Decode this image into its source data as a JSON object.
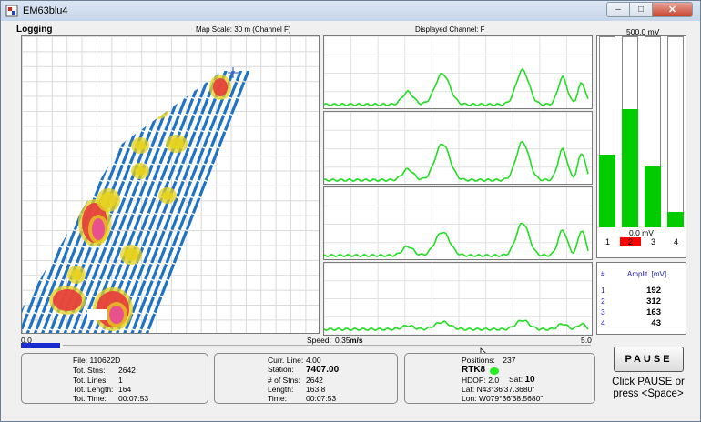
{
  "window": {
    "title": "EM63blu4",
    "min_glyph": "–",
    "max_glyph": "□",
    "close_glyph": "✕"
  },
  "header": {
    "section_title": "Logging",
    "map_scale": "Map Scale:   30 m (Channel F)",
    "displayed_channel": "Displayed Channel: F"
  },
  "bars": {
    "top_label": "500.0 mV",
    "bottom_label": "0.0 mV",
    "levels": [
      0.38,
      0.62,
      0.32,
      0.08
    ],
    "channels": [
      "1",
      "2",
      "3",
      "4"
    ],
    "active_channel_index": 1,
    "bar_color": "#00cc00",
    "active_color": "#ff0000"
  },
  "amplitude_table": {
    "col_num": "#",
    "col_amp": "Amplit. [mV]",
    "rows": [
      {
        "ch": "1",
        "value": "192"
      },
      {
        "ch": "2",
        "value": "312"
      },
      {
        "ch": "3",
        "value": "163"
      },
      {
        "ch": "4",
        "value": "43"
      }
    ]
  },
  "speed": {
    "min": "0.0",
    "label": "Speed:",
    "value": "0.35",
    "unit": "m/s",
    "max": "5.0",
    "fraction": 0.07
  },
  "file_group": {
    "file_label": "File:",
    "file_value": "110622D",
    "stns_label": "Tot. Stns:",
    "stns_value": "2642",
    "lines_label": "Tot. Lines:",
    "lines_value": "1",
    "length_label": "Tot. Length:",
    "length_value": "164",
    "time_label": "Tot. Time:",
    "time_value": "00:07:53"
  },
  "line_group": {
    "line_label": "Curr. Line:",
    "line_value": "4.00",
    "station_label": "Station:",
    "station_value": "7407.00",
    "stns_label": "# of Stns:",
    "stns_value": "2642",
    "length_label": "Length:",
    "length_value": "163.8",
    "time_label": "Time:",
    "time_value": "00:07:53"
  },
  "gps_group": {
    "positions_label": "Positions:",
    "positions_value": "237",
    "fix": "RTK8",
    "fix_color": "#22ee22",
    "hdop_label": "HDOP:",
    "hdop_value": "2.0",
    "sat_label": "Sat:",
    "sat_value": "10",
    "lat_label": "Lat:",
    "lat_value": "N43°36'37.3680\"",
    "lon_label": "Lon:",
    "lon_value": "W079°36'38.5680\""
  },
  "controls": {
    "pause_label": "PAUSE",
    "pause_hint_1": "Click PAUSE or",
    "pause_hint_2": "press <Space>"
  }
}
